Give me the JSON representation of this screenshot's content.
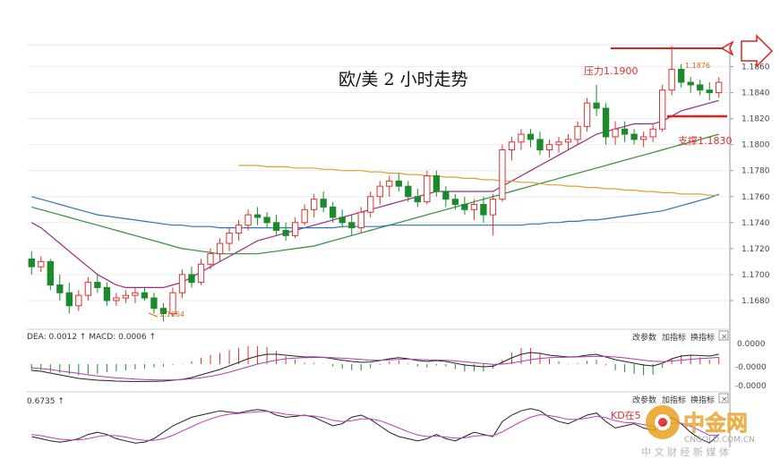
{
  "chart_data": {
    "type": "candlestick",
    "title": "欧/美 2 小时走势",
    "price_ticks": [
      "1.1860",
      "1.1840",
      "1.1820",
      "1.1800",
      "1.1780",
      "1.1760",
      "1.1740",
      "1.1720",
      "1.1700",
      "1.1680"
    ],
    "ylim": [
      1.166,
      1.187
    ],
    "annotations": {
      "resistance": "压力1.1900",
      "support": "支撑1.1830",
      "high": "1.1876",
      "low": "1.1664"
    },
    "candles": [
      [
        1.1712,
        1.1718,
        1.17,
        1.1706
      ],
      [
        1.1706,
        1.1714,
        1.1702,
        1.171
      ],
      [
        1.171,
        1.1712,
        1.1688,
        1.1692
      ],
      [
        1.1692,
        1.17,
        1.168,
        1.1686
      ],
      [
        1.1686,
        1.1694,
        1.167,
        1.1676
      ],
      [
        1.1676,
        1.1688,
        1.1672,
        1.1684
      ],
      [
        1.1684,
        1.1698,
        1.168,
        1.1694
      ],
      [
        1.1694,
        1.17,
        1.1686,
        1.169
      ],
      [
        1.169,
        1.1694,
        1.1676,
        1.168
      ],
      [
        1.168,
        1.1686,
        1.1676,
        1.1682
      ],
      [
        1.1682,
        1.1688,
        1.1678,
        1.1684
      ],
      [
        1.1684,
        1.169,
        1.1678,
        1.1686
      ],
      [
        1.1686,
        1.169,
        1.168,
        1.1682
      ],
      [
        1.1682,
        1.1686,
        1.167,
        1.1674
      ],
      [
        1.1674,
        1.1678,
        1.1664,
        1.167
      ],
      [
        1.167,
        1.169,
        1.1668,
        1.1686
      ],
      [
        1.1686,
        1.1704,
        1.1682,
        1.17
      ],
      [
        1.17,
        1.1706,
        1.169,
        1.1694
      ],
      [
        1.1694,
        1.1712,
        1.1692,
        1.1708
      ],
      [
        1.1708,
        1.172,
        1.1704,
        1.1716
      ],
      [
        1.1716,
        1.1728,
        1.171,
        1.1724
      ],
      [
        1.1724,
        1.1736,
        1.1718,
        1.1732
      ],
      [
        1.1732,
        1.1742,
        1.1726,
        1.1738
      ],
      [
        1.1738,
        1.175,
        1.1734,
        1.1746
      ],
      [
        1.1746,
        1.1752,
        1.1738,
        1.1744
      ],
      [
        1.1744,
        1.1748,
        1.1736,
        1.174
      ],
      [
        1.174,
        1.1746,
        1.173,
        1.1734
      ],
      [
        1.1734,
        1.174,
        1.1726,
        1.173
      ],
      [
        1.173,
        1.1744,
        1.1728,
        1.174
      ],
      [
        1.174,
        1.1754,
        1.1738,
        1.175
      ],
      [
        1.175,
        1.1762,
        1.1744,
        1.1758
      ],
      [
        1.1758,
        1.1764,
        1.1748,
        1.1752
      ],
      [
        1.1752,
        1.1756,
        1.174,
        1.1744
      ],
      [
        1.1744,
        1.175,
        1.1736,
        1.174
      ],
      [
        1.174,
        1.1746,
        1.173,
        1.1736
      ],
      [
        1.1736,
        1.1752,
        1.1732,
        1.1748
      ],
      [
        1.1748,
        1.1764,
        1.1744,
        1.176
      ],
      [
        1.176,
        1.1772,
        1.1754,
        1.1768
      ],
      [
        1.1768,
        1.1776,
        1.176,
        1.1772
      ],
      [
        1.1772,
        1.1778,
        1.1764,
        1.1768
      ],
      [
        1.1768,
        1.1772,
        1.1756,
        1.176
      ],
      [
        1.176,
        1.1766,
        1.1752,
        1.1756
      ],
      [
        1.1756,
        1.178,
        1.1754,
        1.1776
      ],
      [
        1.1776,
        1.178,
        1.176,
        1.1764
      ],
      [
        1.1764,
        1.1768,
        1.1752,
        1.1758
      ],
      [
        1.1758,
        1.1762,
        1.175,
        1.1754
      ],
      [
        1.1754,
        1.176,
        1.1746,
        1.175
      ],
      [
        1.175,
        1.1758,
        1.1742,
        1.1754
      ],
      [
        1.1754,
        1.176,
        1.174,
        1.1746
      ],
      [
        1.1746,
        1.1762,
        1.173,
        1.1758
      ],
      [
        1.1758,
        1.18,
        1.1756,
        1.1796
      ],
      [
        1.1796,
        1.1806,
        1.1788,
        1.1802
      ],
      [
        1.1802,
        1.1812,
        1.1796,
        1.1808
      ],
      [
        1.1808,
        1.1812,
        1.1798,
        1.1804
      ],
      [
        1.1804,
        1.181,
        1.1792,
        1.1796
      ],
      [
        1.1796,
        1.1804,
        1.179,
        1.18
      ],
      [
        1.18,
        1.1806,
        1.1794,
        1.1802
      ],
      [
        1.1802,
        1.1808,
        1.1796,
        1.1804
      ],
      [
        1.1804,
        1.1818,
        1.18,
        1.1814
      ],
      [
        1.1814,
        1.1836,
        1.181,
        1.1832
      ],
      [
        1.1832,
        1.1846,
        1.1822,
        1.1828
      ],
      [
        1.1828,
        1.1832,
        1.18,
        1.1806
      ],
      [
        1.1806,
        1.1818,
        1.18,
        1.1812
      ],
      [
        1.1812,
        1.1818,
        1.1802,
        1.1808
      ],
      [
        1.1808,
        1.1812,
        1.18,
        1.1804
      ],
      [
        1.1804,
        1.181,
        1.1798,
        1.1806
      ],
      [
        1.1806,
        1.1816,
        1.1802,
        1.1812
      ],
      [
        1.1812,
        1.1846,
        1.181,
        1.1842
      ],
      [
        1.1842,
        1.1876,
        1.1838,
        1.1858
      ],
      [
        1.1858,
        1.1862,
        1.1844,
        1.1848
      ],
      [
        1.1848,
        1.1852,
        1.184,
        1.1846
      ],
      [
        1.1846,
        1.185,
        1.1838,
        1.1842
      ],
      [
        1.1842,
        1.1848,
        1.1834,
        1.184
      ],
      [
        1.184,
        1.1852,
        1.1836,
        1.1848
      ]
    ],
    "ma_series": [
      {
        "color": "#9b2a7c",
        "values": [
          1.174,
          1.1736,
          1.173,
          1.1724,
          1.1718,
          1.1712,
          1.1706,
          1.17,
          1.1696,
          1.1692,
          1.169,
          1.169,
          1.169,
          1.169,
          1.169,
          1.1692,
          1.1694,
          1.1698,
          1.1702,
          1.1706,
          1.171,
          1.1714,
          1.1718,
          1.1722,
          1.1726,
          1.1728,
          1.173,
          1.1732,
          1.1734,
          1.1736,
          1.1738,
          1.174,
          1.1742,
          1.1744,
          1.1746,
          1.1748,
          1.175,
          1.1752,
          1.1754,
          1.1756,
          1.1758,
          1.176,
          1.1762,
          1.1764,
          1.1764,
          1.1764,
          1.1764,
          1.1764,
          1.1764,
          1.1764,
          1.1768,
          1.1772,
          1.1776,
          1.178,
          1.1784,
          1.1788,
          1.1792,
          1.1796,
          1.18,
          1.1804,
          1.1808,
          1.181,
          1.1812,
          1.1814,
          1.1816,
          1.1816,
          1.1816,
          1.1818,
          1.1822,
          1.1826,
          1.1828,
          1.183,
          1.1832,
          1.1834
        ]
      },
      {
        "color": "#2f8f3a",
        "values": [
          1.1752,
          1.175,
          1.1748,
          1.1746,
          1.1744,
          1.1742,
          1.174,
          1.1738,
          1.1736,
          1.1734,
          1.1732,
          1.173,
          1.1728,
          1.1726,
          1.1724,
          1.1722,
          1.172,
          1.1719,
          1.1718,
          1.1717,
          1.1716,
          1.1716,
          1.1716,
          1.1716,
          1.1716,
          1.1717,
          1.1718,
          1.1719,
          1.172,
          1.1721,
          1.1722,
          1.1724,
          1.1726,
          1.1728,
          1.173,
          1.1732,
          1.1734,
          1.1736,
          1.1738,
          1.174,
          1.1742,
          1.1744,
          1.1746,
          1.1748,
          1.175,
          1.1752,
          1.1754,
          1.1756,
          1.1758,
          1.176,
          1.1762,
          1.1764,
          1.1766,
          1.1768,
          1.177,
          1.1772,
          1.1774,
          1.1776,
          1.1778,
          1.178,
          1.1782,
          1.1784,
          1.1786,
          1.1788,
          1.179,
          1.1792,
          1.1794,
          1.1796,
          1.1798,
          1.18,
          1.1802,
          1.1804,
          1.1806,
          1.1808
        ]
      },
      {
        "color": "#2e74b5",
        "values": [
          1.176,
          1.1758,
          1.1756,
          1.1754,
          1.1752,
          1.175,
          1.1748,
          1.1746,
          1.1745,
          1.1744,
          1.1743,
          1.1742,
          1.1741,
          1.174,
          1.1739,
          1.1738,
          1.1738,
          1.1737,
          1.1737,
          1.1737,
          1.1736,
          1.1736,
          1.1736,
          1.1736,
          1.1736,
          1.1736,
          1.1736,
          1.1736,
          1.1736,
          1.1736,
          1.1736,
          1.1736,
          1.1736,
          1.1737,
          1.1737,
          1.1737,
          1.1737,
          1.1737,
          1.1738,
          1.1738,
          1.1738,
          1.1738,
          1.1738,
          1.1738,
          1.1738,
          1.1738,
          1.1738,
          1.1738,
          1.1738,
          1.1738,
          1.1738,
          1.1738,
          1.1738,
          1.1739,
          1.1739,
          1.174,
          1.174,
          1.1741,
          1.1741,
          1.1742,
          1.1742,
          1.1743,
          1.1744,
          1.1745,
          1.1746,
          1.1747,
          1.1748,
          1.1749,
          1.1751,
          1.1753,
          1.1755,
          1.1757,
          1.1759,
          1.1762
        ]
      },
      {
        "color": "#e0a030",
        "values": [
          null,
          null,
          null,
          null,
          null,
          null,
          null,
          null,
          null,
          null,
          null,
          null,
          null,
          null,
          null,
          null,
          null,
          null,
          null,
          null,
          null,
          null,
          1.1784,
          1.1784,
          1.1784,
          1.1783,
          1.1783,
          1.1783,
          1.1782,
          1.1782,
          1.1782,
          1.1781,
          1.1781,
          1.178,
          1.178,
          1.178,
          1.1779,
          1.1779,
          1.1778,
          1.1778,
          1.1777,
          1.1777,
          1.1776,
          1.1776,
          1.1775,
          1.1775,
          1.1774,
          1.1774,
          1.1773,
          1.1773,
          1.1772,
          1.1772,
          1.1771,
          1.1771,
          1.177,
          1.1769,
          1.1769,
          1.1768,
          1.1768,
          1.1767,
          1.1767,
          1.1766,
          1.1766,
          1.1765,
          1.1765,
          1.1764,
          1.1764,
          1.1763,
          1.1763,
          1.1762,
          1.1762,
          1.1762,
          1.1761,
          1.1761
        ]
      }
    ],
    "macd_panel": {
      "label": "DEA: 0.0012 ↑ MACD: 0.0006 ↑",
      "ticks": [
        "0.0000",
        "-0.0000",
        "-0.0000"
      ],
      "buttons": [
        "改参数",
        "加指标",
        "换指标"
      ],
      "dif": [
        -0.35,
        -0.4,
        -0.5,
        -0.6,
        -0.7,
        -0.8,
        -0.85,
        -0.9,
        -0.92,
        -0.95,
        -0.96,
        -0.97,
        -0.97,
        -0.96,
        -0.95,
        -0.9,
        -0.85,
        -0.75,
        -0.6,
        -0.45,
        -0.3,
        -0.1,
        0.1,
        0.3,
        0.45,
        0.55,
        0.55,
        0.5,
        0.45,
        0.4,
        0.4,
        0.38,
        0.3,
        0.22,
        0.15,
        0.1,
        0.12,
        0.2,
        0.3,
        0.36,
        0.3,
        0.2,
        0.15,
        0.2,
        0.15,
        0.05,
        -0.05,
        -0.1,
        -0.15,
        -0.12,
        0.1,
        0.35,
        0.55,
        0.65,
        0.6,
        0.5,
        0.45,
        0.4,
        0.42,
        0.5,
        0.55,
        0.4,
        0.25,
        0.15,
        0.05,
        -0.05,
        -0.1,
        0.05,
        0.3,
        0.45,
        0.5,
        0.48,
        0.45,
        0.55
      ],
      "dea": [
        -0.2,
        -0.25,
        -0.3,
        -0.38,
        -0.45,
        -0.52,
        -0.6,
        -0.66,
        -0.72,
        -0.77,
        -0.8,
        -0.84,
        -0.86,
        -0.88,
        -0.89,
        -0.88,
        -0.86,
        -0.82,
        -0.76,
        -0.68,
        -0.58,
        -0.45,
        -0.3,
        -0.15,
        0.0,
        0.12,
        0.22,
        0.3,
        0.34,
        0.36,
        0.37,
        0.37,
        0.36,
        0.33,
        0.3,
        0.26,
        0.22,
        0.22,
        0.24,
        0.27,
        0.28,
        0.26,
        0.24,
        0.23,
        0.21,
        0.18,
        0.13,
        0.08,
        0.03,
        -0.01,
        0.0,
        0.06,
        0.15,
        0.25,
        0.32,
        0.36,
        0.38,
        0.39,
        0.4,
        0.42,
        0.44,
        0.43,
        0.4,
        0.35,
        0.29,
        0.22,
        0.16,
        0.14,
        0.17,
        0.22,
        0.27,
        0.31,
        0.34,
        0.38
      ]
    },
    "kd_panel": {
      "label": "0.6735 ↑",
      "buttons": [
        "改参数",
        "加指标",
        "换指标"
      ],
      "annotation": "KD在5",
      "k": [
        0.25,
        0.2,
        0.15,
        0.12,
        0.15,
        0.2,
        0.3,
        0.35,
        0.3,
        0.2,
        0.15,
        0.1,
        0.12,
        0.2,
        0.35,
        0.5,
        0.6,
        0.7,
        0.75,
        0.8,
        0.85,
        0.82,
        0.8,
        0.85,
        0.88,
        0.85,
        0.75,
        0.7,
        0.72,
        0.75,
        0.7,
        0.6,
        0.5,
        0.55,
        0.7,
        0.75,
        0.65,
        0.5,
        0.35,
        0.25,
        0.2,
        0.15,
        0.2,
        0.3,
        0.2,
        0.15,
        0.25,
        0.35,
        0.3,
        0.25,
        0.6,
        0.75,
        0.85,
        0.9,
        0.85,
        0.7,
        0.6,
        0.55,
        0.65,
        0.75,
        0.8,
        0.6,
        0.45,
        0.5,
        0.55,
        0.45,
        0.4,
        0.5,
        0.7,
        0.55,
        0.35,
        0.2,
        0.1,
        0.3
      ],
      "d": [
        0.3,
        0.27,
        0.23,
        0.19,
        0.17,
        0.17,
        0.2,
        0.25,
        0.28,
        0.27,
        0.24,
        0.19,
        0.16,
        0.16,
        0.2,
        0.28,
        0.38,
        0.48,
        0.58,
        0.66,
        0.73,
        0.77,
        0.79,
        0.81,
        0.83,
        0.84,
        0.81,
        0.77,
        0.75,
        0.74,
        0.73,
        0.69,
        0.63,
        0.6,
        0.62,
        0.66,
        0.66,
        0.62,
        0.54,
        0.45,
        0.36,
        0.29,
        0.25,
        0.26,
        0.24,
        0.21,
        0.22,
        0.26,
        0.28,
        0.27,
        0.36,
        0.48,
        0.6,
        0.7,
        0.76,
        0.74,
        0.7,
        0.65,
        0.65,
        0.68,
        0.72,
        0.69,
        0.62,
        0.58,
        0.57,
        0.53,
        0.49,
        0.5,
        0.56,
        0.56,
        0.49,
        0.39,
        0.28,
        0.28
      ]
    }
  },
  "watermark": {
    "brand": "中金网",
    "url": "CNGOLD.COM.CN",
    "slogan": "中 文 财 经 新 媒 体"
  },
  "colors": {
    "up": "#e03030",
    "down": "#1a8a2a",
    "resistance": "#e02020",
    "support": "#e02020"
  }
}
